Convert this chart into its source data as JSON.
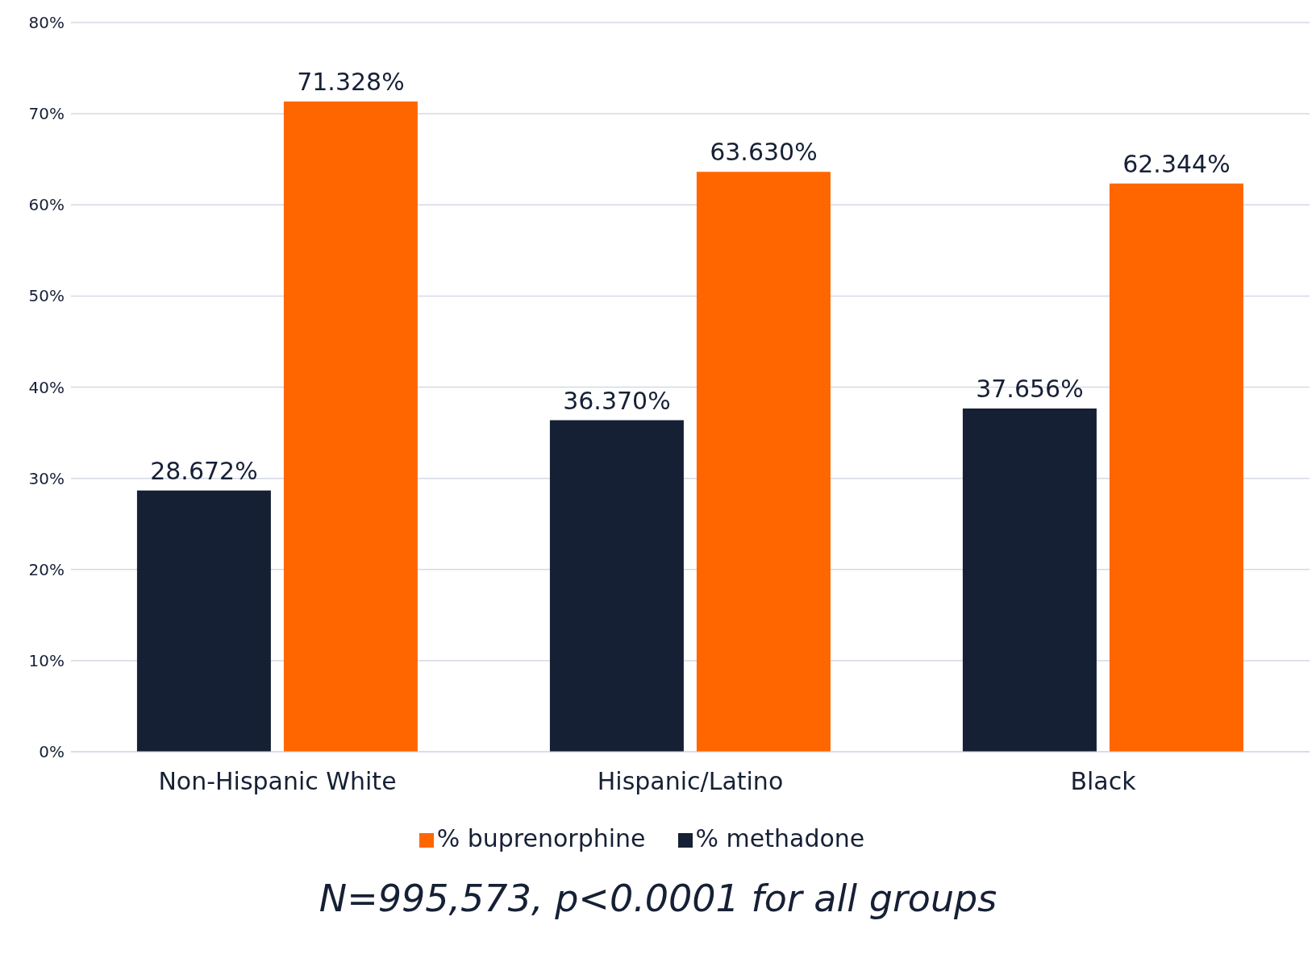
{
  "chart_data": {
    "type": "bar",
    "categories": [
      "Non-Hispanic White",
      "Hispanic/Latino",
      "Black"
    ],
    "series": [
      {
        "name": "% methadone",
        "color": "#162035",
        "values": [
          28.672,
          36.37,
          37.656
        ],
        "value_labels": [
          "28.672%",
          "36.370%",
          "37.656%"
        ]
      },
      {
        "name": "% buprenorphine",
        "color": "#ff6600",
        "values": [
          71.328,
          63.63,
          62.344
        ],
        "value_labels": [
          "71.328%",
          "63.630%",
          "62.344%"
        ]
      }
    ],
    "ylim": [
      0,
      80
    ],
    "yticks": [
      {
        "value": 0,
        "label": "0%"
      },
      {
        "value": 10,
        "label": "10%"
      },
      {
        "value": 20,
        "label": "20%"
      },
      {
        "value": 30,
        "label": "30%"
      },
      {
        "value": 40,
        "label": "40%"
      },
      {
        "value": 50,
        "label": "50%"
      },
      {
        "value": 60,
        "label": "60%"
      },
      {
        "value": 70,
        "label": "70%"
      },
      {
        "value": 80,
        "label": "80%"
      }
    ],
    "grid": "y",
    "legend": "bottom",
    "annotations": [
      "N=995,573, p<0.0001 for all groups"
    ]
  }
}
